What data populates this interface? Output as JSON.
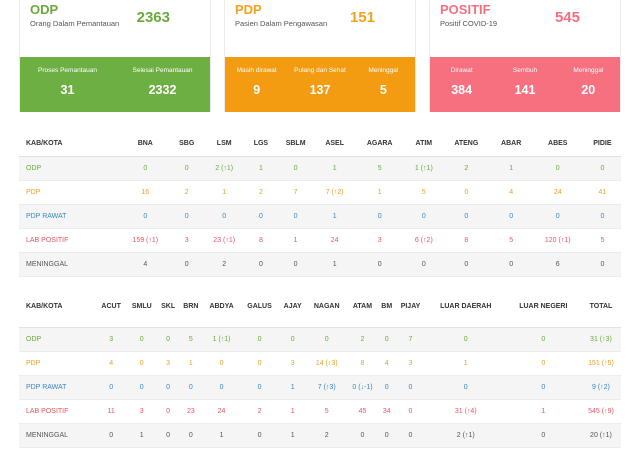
{
  "cards": {
    "odp": {
      "label": "ODP",
      "sub": "Orang Dalam Pemantauan",
      "value": "2363",
      "stats": [
        {
          "title": "Proses Pemantauan",
          "value": "31"
        },
        {
          "title": "Selesai Pemantauan",
          "value": "2332"
        }
      ]
    },
    "pdp": {
      "label": "PDP",
      "sub": "Pasien Dalam Pengawasan",
      "value": "151",
      "stats": [
        {
          "title": "Masih dirawat",
          "value": "9"
        },
        {
          "title": "Pulang dan Sehat",
          "value": "137"
        },
        {
          "title": "Meninggal",
          "value": "5"
        }
      ]
    },
    "positif": {
      "label": "POSITIF",
      "sub": "Positif COVID-19",
      "value": "545",
      "stats": [
        {
          "title": "Dirawat",
          "value": "384"
        },
        {
          "title": "Sembuh",
          "value": "141"
        },
        {
          "title": "Meninggal",
          "value": "20"
        }
      ]
    }
  },
  "table1": {
    "headers": [
      "KAB/KOTA",
      "BNA",
      "SBG",
      "LSM",
      "LGS",
      "SBLM",
      "ASEL",
      "AGARA",
      "ATIM",
      "ATENG",
      "ABAR",
      "ABES",
      "PIDIE"
    ],
    "rows": [
      {
        "label": "ODP",
        "cells": [
          "0",
          "0",
          "2 (↑1)",
          "1",
          "0",
          "1",
          "5",
          "1 (↑1)",
          "2",
          "1",
          "0",
          "0"
        ]
      },
      {
        "label": "PDP",
        "cells": [
          "16",
          "2",
          "1",
          "2",
          "7",
          "7 (↑2)",
          "1",
          "5",
          "0",
          "4",
          "24",
          "41"
        ]
      },
      {
        "label": "PDP RAWAT",
        "cells": [
          "0",
          "0",
          "0",
          "0",
          "0",
          "1",
          "0",
          "0",
          "0",
          "0",
          "0",
          "0"
        ]
      },
      {
        "label": "LAB POSITIF",
        "cells": [
          "159 (↑1)",
          "3",
          "23 (↑1)",
          "8",
          "1",
          "24",
          "3",
          "6 (↑2)",
          "8",
          "5",
          "120 (↑1)",
          "5"
        ]
      },
      {
        "label": "MENINGGAL",
        "cells": [
          "4",
          "0",
          "2",
          "0",
          "0",
          "1",
          "0",
          "0",
          "0",
          "0",
          "6",
          "0"
        ]
      }
    ]
  },
  "table2": {
    "headers": [
      "KAB/KOTA",
      "ACUT",
      "SMLU",
      "SKL",
      "BRN",
      "ABDYA",
      "GALUS",
      "AJAY",
      "NAGAN",
      "ATAM",
      "BM",
      "PIJAY",
      "LUAR DAERAH",
      "LUAR NEGERI",
      "TOTAL"
    ],
    "rows": [
      {
        "label": "ODP",
        "cells": [
          "3",
          "0",
          "0",
          "5",
          "1 (↑1)",
          "0",
          "0",
          "0",
          "2",
          "0",
          "7",
          "0",
          "0",
          "31 (↑3)"
        ]
      },
      {
        "label": "PDP",
        "cells": [
          "4",
          "0",
          "3",
          "1",
          "0",
          "0",
          "3",
          "14 (↑3)",
          "8",
          "4",
          "3",
          "1",
          "0",
          "151 (↑5)"
        ]
      },
      {
        "label": "PDP RAWAT",
        "cells": [
          "0",
          "0",
          "0",
          "0",
          "0",
          "0",
          "1",
          "7 (↑3)",
          "0 (↓-1)",
          "0",
          "0",
          "0",
          "0",
          "9 (↑2)"
        ]
      },
      {
        "label": "LAB POSITIF",
        "cells": [
          "11",
          "3",
          "0",
          "23",
          "24",
          "2",
          "1",
          "5",
          "45",
          "34",
          "0",
          "31 (↑4)",
          "1",
          "545 (↑9)"
        ]
      },
      {
        "label": "MENINGGAL",
        "cells": [
          "0",
          "1",
          "0",
          "0",
          "1",
          "0",
          "1",
          "2",
          "0",
          "0",
          "0",
          "2 (↑1)",
          "0",
          "20 (↑1)"
        ]
      }
    ]
  }
}
